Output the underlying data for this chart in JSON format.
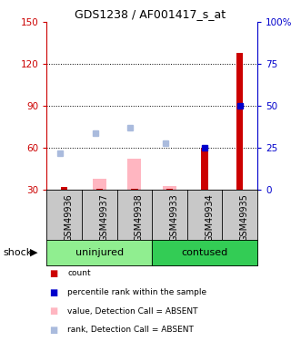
{
  "title": "GDS1238 / AF001417_s_at",
  "samples": [
    "GSM49936",
    "GSM49937",
    "GSM49938",
    "GSM49933",
    "GSM49934",
    "GSM49935"
  ],
  "groups": [
    {
      "label": "uninjured",
      "indices": [
        0,
        1,
        2
      ],
      "color": "#90EE90"
    },
    {
      "label": "contused",
      "indices": [
        3,
        4,
        5
      ],
      "color": "#33CC55"
    }
  ],
  "left_ylim": [
    30,
    150
  ],
  "left_yticks": [
    30,
    60,
    90,
    120,
    150
  ],
  "right_ylim": [
    0,
    100
  ],
  "right_yticks": [
    0,
    25,
    50,
    75,
    100
  ],
  "right_yticklabels": [
    "0",
    "25",
    "50",
    "75",
    "100%"
  ],
  "red_bars": [
    32,
    31,
    31,
    31,
    60,
    128
  ],
  "blue_squares_right": [
    null,
    null,
    null,
    null,
    25,
    50
  ],
  "pink_bars": [
    null,
    38,
    52,
    33,
    null,
    null
  ],
  "lightblue_squares_right": [
    22,
    34,
    37,
    28,
    null,
    null
  ],
  "left_axis_color": "#CC0000",
  "right_axis_color": "#0000CC",
  "bar_width": 0.35,
  "sample_bg_color": "#C8C8C8",
  "legend_items": [
    {
      "color": "#CC0000",
      "label": "count"
    },
    {
      "color": "#0000CC",
      "label": "percentile rank within the sample"
    },
    {
      "color": "#FFB6C1",
      "label": "value, Detection Call = ABSENT"
    },
    {
      "color": "#AABBDD",
      "label": "rank, Detection Call = ABSENT"
    }
  ],
  "grid_yticks": [
    60,
    90,
    120
  ]
}
